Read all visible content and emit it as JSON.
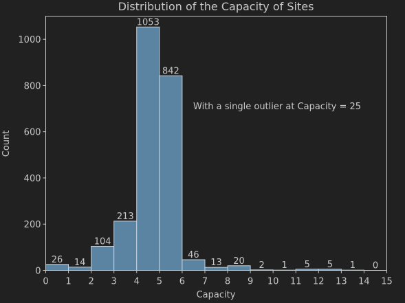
{
  "chart_data": {
    "type": "bar",
    "title": "Distribution of the Capacity of Sites",
    "xlabel": "Capacity",
    "ylabel": "Count",
    "annotation": "With a single outlier at Capacity = 25",
    "xlim": [
      0,
      15
    ],
    "ylim": [
      0,
      1100
    ],
    "x_ticks": [
      0,
      1,
      2,
      3,
      4,
      5,
      6,
      7,
      8,
      9,
      10,
      11,
      12,
      13,
      14,
      15
    ],
    "y_ticks": [
      0,
      200,
      400,
      600,
      800,
      1000
    ],
    "bins": [
      {
        "start": 0,
        "end": 1,
        "value": 26
      },
      {
        "start": 1,
        "end": 2,
        "value": 14
      },
      {
        "start": 2,
        "end": 3,
        "value": 104
      },
      {
        "start": 3,
        "end": 4,
        "value": 213
      },
      {
        "start": 4,
        "end": 5,
        "value": 1053
      },
      {
        "start": 5,
        "end": 6,
        "value": 842
      },
      {
        "start": 6,
        "end": 7,
        "value": 46
      },
      {
        "start": 7,
        "end": 8,
        "value": 13
      },
      {
        "start": 8,
        "end": 9,
        "value": 20
      },
      {
        "start": 9,
        "end": 10,
        "value": 2
      },
      {
        "start": 10,
        "end": 11,
        "value": 1
      },
      {
        "start": 11,
        "end": 12,
        "value": 5
      },
      {
        "start": 12,
        "end": 13,
        "value": 5
      },
      {
        "start": 13,
        "end": 14,
        "value": 1
      },
      {
        "start": 14,
        "end": 15,
        "value": 0
      }
    ],
    "grid": false,
    "colors": {
      "background": "#212121",
      "bar_fill": "#5b84a3",
      "bar_edge": "#c8d4de",
      "axis": "#c8c8c8",
      "text": "#c8c8c8"
    }
  }
}
